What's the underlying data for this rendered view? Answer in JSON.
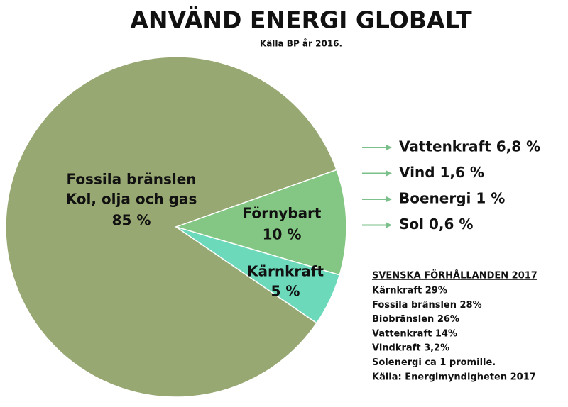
{
  "chart_data": {
    "type": "pie",
    "title": "ANVÄND ENERGI GLOBALT",
    "subtitle": "Källa BP år 2016.",
    "categories": [
      "Fossila bränslen",
      "Förnybart",
      "Kärnkraft"
    ],
    "category_notes": {
      "0": "Kol, olja och gas"
    },
    "values": [
      85,
      10,
      5
    ],
    "value_labels": [
      "85 %",
      "10 %",
      "5 %"
    ],
    "colors": [
      "#98a873",
      "#84c784",
      "#6cd9bb"
    ],
    "breakdown": [
      "Vattenkraft 6,8 %",
      "Vind 1,6 %",
      "Boenergi 1 %",
      "Sol 0,6 %"
    ],
    "notes": {
      "title": "SVENSKA FÖRHÅLLANDEN 2017",
      "lines": [
        "Kärnkraft 29%",
        "Fossila bränslen 28%",
        "Biobränslen 26%",
        "Vattenkraft 14%",
        "Vindkraft 3,2%",
        "Solenergi ca 1 promille.",
        "Källa: Energimyndigheten 2017"
      ]
    }
  }
}
